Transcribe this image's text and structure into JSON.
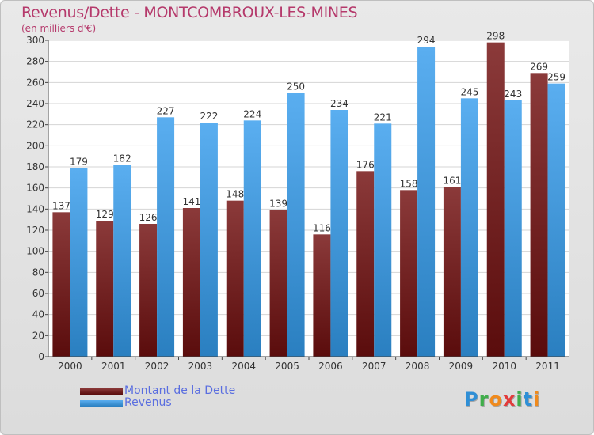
{
  "title": "Revenus/Dette - MONTCOMBROUX-LES-MINES",
  "subtitle": "(en milliers d'€)",
  "logo": {
    "text": "Proxiti",
    "letters": [
      {
        "ch": "P",
        "color": "#2f8fd6"
      },
      {
        "ch": "r",
        "color": "#3fae4a"
      },
      {
        "ch": "o",
        "color": "#f08a1c"
      },
      {
        "ch": "x",
        "color": "#e23b3b"
      },
      {
        "ch": "i",
        "color": "#3fae4a"
      },
      {
        "ch": "t",
        "color": "#2f8fd6"
      },
      {
        "ch": "i",
        "color": "#f08a1c"
      }
    ]
  },
  "colors": {
    "debt_top": "#8b3a3a",
    "debt_bottom": "#5a0c0c",
    "revenue_top": "#5aaef0",
    "revenue_bottom": "#2a7fc0",
    "title": "#b5396b",
    "legend_text": "#5a6ee0"
  },
  "chart_data": {
    "type": "bar",
    "categories": [
      "2000",
      "2001",
      "2002",
      "2003",
      "2004",
      "2005",
      "2006",
      "2007",
      "2008",
      "2009",
      "2010",
      "2011"
    ],
    "series": [
      {
        "name": "Montant de la Dette",
        "values": [
          137,
          129,
          126,
          141,
          148,
          139,
          116,
          176,
          158,
          161,
          298,
          269
        ]
      },
      {
        "name": "Revenus",
        "values": [
          179,
          182,
          227,
          222,
          224,
          250,
          234,
          221,
          294,
          245,
          243,
          259
        ]
      }
    ],
    "ylim": [
      0,
      300
    ],
    "yticks": [
      0,
      20,
      40,
      60,
      80,
      100,
      120,
      140,
      160,
      180,
      200,
      220,
      240,
      260,
      280,
      300
    ],
    "grid": true,
    "legend_position": "bottom-left"
  }
}
